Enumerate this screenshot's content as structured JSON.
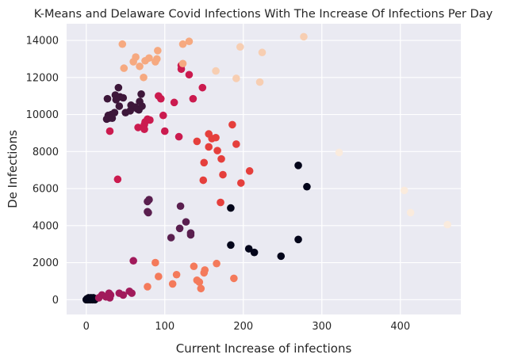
{
  "chart_data": {
    "type": "scatter",
    "title": "K-Means and Delaware Covid Infections With The Increase Of Infections Per Day",
    "xlabel": "Current Increase of infections",
    "ylabel": "De Infections",
    "xlim": [
      -25,
      477
    ],
    "ylim": [
      -800,
      14900
    ],
    "x_ticks": [
      0,
      100,
      200,
      300,
      400
    ],
    "y_ticks": [
      0,
      2000,
      4000,
      6000,
      8000,
      10000,
      12000,
      14000
    ],
    "grid": true,
    "background": "#eaeaf2",
    "series": [
      {
        "color": "#03051a",
        "points": [
          [
            270,
            7250
          ],
          [
            281,
            6100
          ],
          [
            184,
            4950
          ],
          [
            270,
            3250
          ],
          [
            184,
            2950
          ],
          [
            207,
            2750
          ],
          [
            214,
            2550
          ],
          [
            248,
            2350
          ],
          [
            0,
            0
          ],
          [
            1,
            50
          ],
          [
            2,
            0
          ],
          [
            3,
            100
          ],
          [
            4,
            50
          ],
          [
            5,
            0
          ],
          [
            6,
            100
          ],
          [
            7,
            50
          ],
          [
            8,
            0
          ],
          [
            9,
            100
          ],
          [
            10,
            50
          ],
          [
            11,
            0
          ],
          [
            12,
            50
          ]
        ]
      },
      {
        "color": "#3d173a",
        "points": [
          [
            41,
            11450
          ],
          [
            37,
            11050
          ],
          [
            43,
            10950
          ],
          [
            47,
            10900
          ],
          [
            38,
            10800
          ],
          [
            27,
            10850
          ],
          [
            70,
            11100
          ],
          [
            68,
            10700
          ],
          [
            42,
            10450
          ],
          [
            57,
            10500
          ],
          [
            62,
            10400
          ],
          [
            65,
            10300
          ],
          [
            67,
            10250
          ],
          [
            56,
            10200
          ],
          [
            71,
            10450
          ],
          [
            50,
            10100
          ],
          [
            32,
            10000
          ],
          [
            36,
            10100
          ],
          [
            28,
            9950
          ],
          [
            29,
            9800
          ],
          [
            26,
            9750
          ],
          [
            33,
            9800
          ]
        ]
      },
      {
        "color": "#5a1f4f",
        "points": [
          [
            80,
            5400
          ],
          [
            78,
            5300
          ],
          [
            78,
            4750
          ],
          [
            79,
            4700
          ],
          [
            120,
            5050
          ],
          [
            127,
            4200
          ],
          [
            119,
            3850
          ],
          [
            133,
            3600
          ],
          [
            133,
            3500
          ],
          [
            108,
            3350
          ]
        ]
      },
      {
        "color": "#a11a5b",
        "points": [
          [
            60,
            2100
          ],
          [
            42,
            350
          ],
          [
            47,
            250
          ],
          [
            58,
            350
          ],
          [
            55,
            450
          ],
          [
            20,
            250
          ],
          [
            25,
            150
          ],
          [
            29,
            350
          ],
          [
            29,
            200
          ],
          [
            31,
            250
          ],
          [
            30,
            100
          ],
          [
            16,
            100
          ]
        ]
      },
      {
        "color": "#cb1b4f",
        "points": [
          [
            92,
            11000
          ],
          [
            95,
            10850
          ],
          [
            112,
            10650
          ],
          [
            121,
            12650
          ],
          [
            121,
            12450
          ],
          [
            131,
            12150
          ],
          [
            136,
            10850
          ],
          [
            148,
            11450
          ],
          [
            98,
            9950
          ],
          [
            78,
            9750
          ],
          [
            75,
            9600
          ],
          [
            81,
            9700
          ],
          [
            74,
            9450
          ],
          [
            66,
            9300
          ],
          [
            74,
            9200
          ],
          [
            30,
            9100
          ],
          [
            100,
            9100
          ],
          [
            118,
            8800
          ],
          [
            40,
            6500
          ]
        ]
      },
      {
        "color": "#e53f3c",
        "points": [
          [
            156,
            8950
          ],
          [
            160,
            8700
          ],
          [
            165,
            8750
          ],
          [
            186,
            9450
          ],
          [
            191,
            8400
          ],
          [
            156,
            8250
          ],
          [
            167,
            8050
          ],
          [
            141,
            8550
          ],
          [
            172,
            7600
          ],
          [
            150,
            7400
          ],
          [
            208,
            6950
          ],
          [
            174,
            6750
          ],
          [
            149,
            6450
          ],
          [
            197,
            6300
          ],
          [
            171,
            5250
          ]
        ]
      },
      {
        "color": "#f47a5b",
        "points": [
          [
            88,
            2000
          ],
          [
            92,
            1250
          ],
          [
            115,
            1350
          ],
          [
            110,
            850
          ],
          [
            137,
            1800
          ],
          [
            151,
            1600
          ],
          [
            150,
            1450
          ],
          [
            166,
            1950
          ],
          [
            188,
            1150
          ],
          [
            141,
            1050
          ],
          [
            146,
            600
          ],
          [
            78,
            700
          ],
          [
            144,
            950
          ]
        ]
      },
      {
        "color": "#f6a980",
        "points": [
          [
            46,
            13800
          ],
          [
            60,
            12850
          ],
          [
            63,
            13100
          ],
          [
            75,
            12900
          ],
          [
            80,
            13050
          ],
          [
            90,
            13000
          ],
          [
            91,
            13450
          ],
          [
            88,
            12850
          ],
          [
            123,
            13800
          ],
          [
            131,
            13950
          ],
          [
            123,
            12750
          ],
          [
            48,
            12500
          ],
          [
            68,
            12600
          ],
          [
            73,
            12000
          ]
        ]
      },
      {
        "color": "#f7ceb2",
        "points": [
          [
            277,
            14200
          ],
          [
            196,
            13650
          ],
          [
            224,
            13350
          ],
          [
            165,
            12350
          ],
          [
            191,
            11950
          ],
          [
            221,
            11750
          ]
        ]
      },
      {
        "color": "#faebdd",
        "points": [
          [
            322,
            7950
          ],
          [
            405,
            5900
          ],
          [
            413,
            4700
          ],
          [
            460,
            4050
          ]
        ]
      }
    ]
  }
}
